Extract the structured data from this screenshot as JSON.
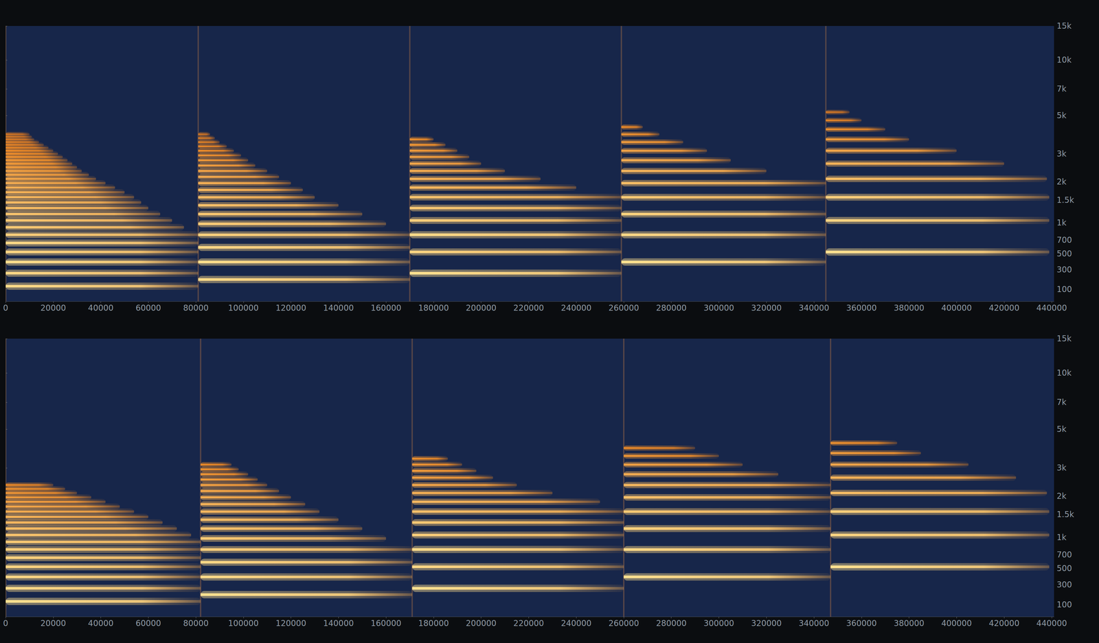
{
  "chart_data": [
    {
      "type": "spectrogram",
      "grid": false,
      "xlim": [
        0,
        441000
      ],
      "xticks": [
        0,
        20000,
        40000,
        60000,
        80000,
        100000,
        120000,
        140000,
        160000,
        180000,
        200000,
        220000,
        240000,
        260000,
        280000,
        300000,
        320000,
        340000,
        360000,
        380000,
        400000,
        420000,
        440000
      ],
      "ylim": [
        0,
        15000
      ],
      "yticks": [
        100,
        300,
        500,
        700,
        {
          "value": 1000,
          "label": "1k"
        },
        {
          "value": 1500,
          "label": "1.5k"
        },
        {
          "value": 2000,
          "label": "2k"
        },
        {
          "value": 3000,
          "label": "3k"
        },
        {
          "value": 5000,
          "label": "5k"
        },
        {
          "value": 7000,
          "label": "7k"
        },
        {
          "value": 10000,
          "label": "10k"
        },
        {
          "value": 15000,
          "label": "15k"
        }
      ],
      "db_range": [
        -60,
        0
      ],
      "notes": [
        {
          "onset": 0,
          "freqs": [
            131,
            262,
            392,
            523,
            654,
            785,
            916,
            1046,
            1177,
            1308,
            1439,
            1570,
            1700,
            1831,
            1962,
            2093,
            2224,
            2354,
            2485,
            2616,
            2747,
            2878,
            3008,
            3139,
            3270,
            3401,
            3532,
            3662,
            3793,
            3924
          ],
          "ends": [
            81000,
            81000,
            81000,
            81000,
            81000,
            81000,
            75000,
            70000,
            65000,
            60000,
            57000,
            54000,
            50000,
            46000,
            42000,
            38000,
            35000,
            32000,
            30000,
            28000,
            26000,
            24000,
            22000,
            20000,
            18000,
            16000,
            14000,
            12000,
            11000,
            10000
          ],
          "dbs": [
            -2,
            -3,
            -1,
            -4,
            -3,
            -6,
            -8,
            -9,
            -10,
            -12,
            -13,
            -14,
            -16,
            -17,
            -18,
            -20,
            -21,
            -22,
            -24,
            -25,
            -26,
            -28,
            -29,
            -30,
            -32,
            -33,
            -34,
            -36,
            -37,
            -38
          ]
        },
        {
          "onset": 81000,
          "freqs": [
            196,
            392,
            588,
            784,
            980,
            1176,
            1372,
            1568,
            1764,
            1960,
            2156,
            2352,
            2548,
            2744,
            2940,
            3136,
            3332,
            3528,
            3724,
            3920
          ],
          "ends": [
            170000,
            170000,
            170000,
            170000,
            160000,
            150000,
            140000,
            130000,
            125000,
            120000,
            115000,
            110000,
            105000,
            102000,
            99000,
            96000,
            93000,
            90000,
            88000,
            86000
          ],
          "dbs": [
            -2,
            -1,
            -3,
            -5,
            -7,
            -9,
            -11,
            -13,
            -15,
            -17,
            -19,
            -21,
            -23,
            -25,
            -27,
            -29,
            -31,
            -33,
            -35,
            -37
          ]
        },
        {
          "onset": 170000,
          "freqs": [
            262,
            523,
            785,
            1046,
            1308,
            1570,
            1831,
            2093,
            2354,
            2616,
            2878,
            3139,
            3400,
            3662
          ],
          "ends": [
            259000,
            259000,
            259000,
            259000,
            259000,
            259000,
            240000,
            225000,
            210000,
            200000,
            195000,
            190000,
            185000,
            180000
          ],
          "dbs": [
            0,
            -4,
            -2,
            -6,
            -8,
            -10,
            -14,
            -16,
            -18,
            -20,
            -22,
            -24,
            -26,
            -28
          ]
        },
        {
          "onset": 259000,
          "freqs": [
            392,
            784,
            1176,
            1568,
            1960,
            2352,
            2744,
            3136,
            3528,
            3920,
            4312
          ],
          "ends": [
            345000,
            345000,
            345000,
            345000,
            345000,
            320000,
            305000,
            295000,
            285000,
            275000,
            268000
          ],
          "dbs": [
            0,
            -3,
            -5,
            -8,
            -12,
            -15,
            -18,
            -21,
            -24,
            -27,
            -30
          ]
        },
        {
          "onset": 345000,
          "freqs": [
            523,
            1046,
            1570,
            2093,
            2616,
            3139,
            3662,
            4186,
            4709,
            5232
          ],
          "ends": [
            439000,
            439000,
            439000,
            438000,
            420000,
            400000,
            380000,
            370000,
            360000,
            355000
          ],
          "dbs": [
            0,
            -4,
            -6,
            -12,
            -16,
            -20,
            -24,
            -28,
            -32,
            -36
          ]
        }
      ]
    },
    {
      "type": "spectrogram",
      "grid": false,
      "xlim": [
        0,
        441000
      ],
      "xticks": [
        0,
        20000,
        40000,
        60000,
        80000,
        100000,
        120000,
        140000,
        160000,
        180000,
        200000,
        220000,
        240000,
        260000,
        280000,
        300000,
        320000,
        340000,
        360000,
        380000,
        400000,
        420000,
        440000
      ],
      "ylim": [
        0,
        15000
      ],
      "yticks": [
        100,
        300,
        500,
        700,
        {
          "value": 1000,
          "label": "1k"
        },
        {
          "value": 1500,
          "label": "1.5k"
        },
        {
          "value": 2000,
          "label": "2k"
        },
        {
          "value": 3000,
          "label": "3k"
        },
        {
          "value": 5000,
          "label": "5k"
        },
        {
          "value": 7000,
          "label": "7k"
        },
        {
          "value": 10000,
          "label": "10k"
        },
        {
          "value": 15000,
          "label": "15k"
        }
      ],
      "db_range": [
        -60,
        0
      ],
      "notes": [
        {
          "onset": 0,
          "freqs": [
            131,
            262,
            392,
            523,
            654,
            785,
            916,
            1046,
            1177,
            1308,
            1439,
            1570,
            1700,
            1831,
            1962,
            2093,
            2224,
            2354
          ],
          "ends": [
            82000,
            82000,
            82000,
            82000,
            82000,
            82000,
            82000,
            78000,
            72000,
            66000,
            60000,
            54000,
            48000,
            42000,
            36000,
            30000,
            25000,
            20000
          ],
          "dbs": [
            0,
            -2,
            -3,
            -4,
            -5,
            -6,
            -8,
            -10,
            -12,
            -14,
            -16,
            -18,
            -20,
            -22,
            -24,
            -26,
            -28,
            -30
          ]
        },
        {
          "onset": 82000,
          "freqs": [
            196,
            392,
            588,
            784,
            980,
            1176,
            1372,
            1568,
            1764,
            1960,
            2156,
            2352,
            2548,
            2744,
            2940,
            3136
          ],
          "ends": [
            171000,
            171000,
            171000,
            171000,
            160000,
            150000,
            140000,
            132000,
            126000,
            120000,
            115000,
            110000,
            106000,
            102000,
            98000,
            95000
          ],
          "dbs": [
            0,
            -2,
            -3,
            -6,
            -8,
            -10,
            -12,
            -14,
            -16,
            -18,
            -20,
            -22,
            -24,
            -26,
            -28,
            -30
          ]
        },
        {
          "onset": 171000,
          "freqs": [
            262,
            523,
            785,
            1046,
            1308,
            1570,
            1831,
            2093,
            2354,
            2616,
            2878,
            3139,
            3400
          ],
          "ends": [
            260000,
            260000,
            260000,
            260000,
            260000,
            260000,
            250000,
            230000,
            215000,
            205000,
            198000,
            192000,
            186000
          ],
          "dbs": [
            0,
            -3,
            -2,
            -6,
            -8,
            -11,
            -14,
            -17,
            -20,
            -22,
            -24,
            -26,
            -28
          ]
        },
        {
          "onset": 260000,
          "freqs": [
            392,
            784,
            1176,
            1568,
            1960,
            2352,
            2744,
            3136,
            3528,
            3920
          ],
          "ends": [
            347000,
            347000,
            347000,
            347000,
            347000,
            347000,
            325000,
            310000,
            300000,
            290000
          ],
          "dbs": [
            0,
            -3,
            -5,
            -8,
            -11,
            -14,
            -18,
            -22,
            -26,
            -30
          ]
        },
        {
          "onset": 347000,
          "freqs": [
            523,
            1046,
            1570,
            2093,
            2616,
            3139,
            3662,
            4186
          ],
          "ends": [
            439000,
            439000,
            439000,
            438000,
            425000,
            405000,
            385000,
            375000
          ],
          "dbs": [
            0,
            -4,
            -6,
            -12,
            -16,
            -20,
            -24,
            -28
          ]
        }
      ]
    }
  ]
}
